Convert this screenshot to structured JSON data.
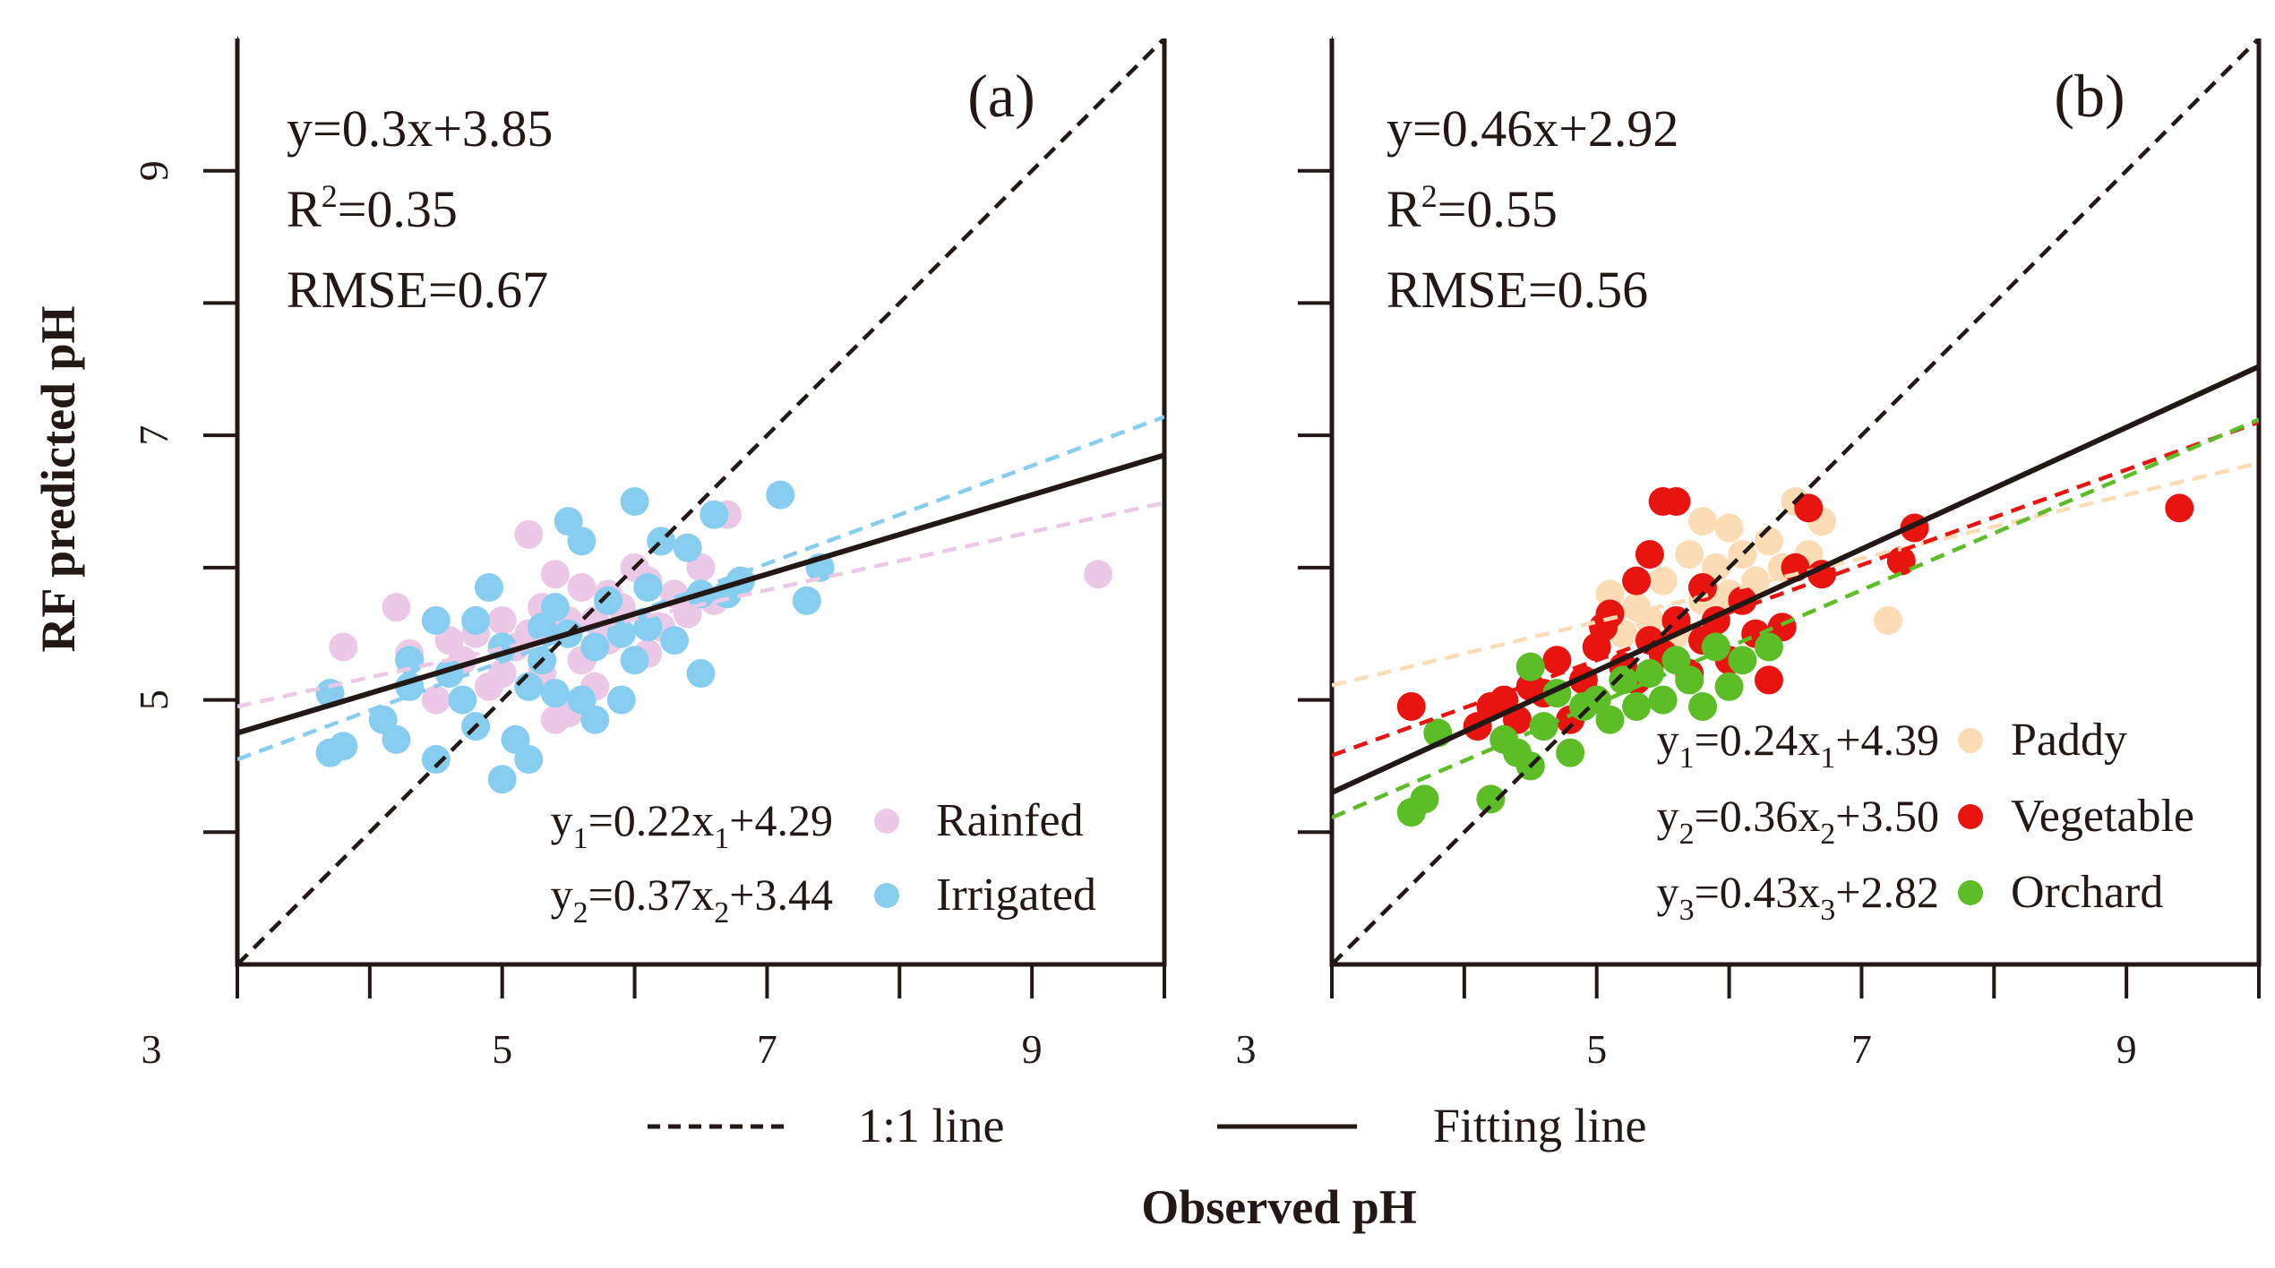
{
  "figure": {
    "ylabel": "RF predicted pH",
    "xlabel": "Observed pH",
    "legend": {
      "dashed_label": "1:1 line",
      "solid_label": "Fitting line"
    }
  },
  "chart_data": [
    {
      "type": "scatter",
      "panel_label": "(a)",
      "xlim": [
        3,
        10
      ],
      "ylim": [
        3,
        10
      ],
      "xticks": [
        3,
        5,
        7,
        9
      ],
      "yticks": [
        5,
        7,
        9
      ],
      "stats": {
        "eq": "y=0.3x+3.85",
        "r2_prefix": "R",
        "r2_sup": "2",
        "r2_value": "=0.35",
        "rmse": "RMSE=0.67"
      },
      "overall_fit": {
        "slope": 0.3,
        "intercept": 3.85
      },
      "one_to_one": true,
      "series": [
        {
          "name": "Rainfed",
          "color": "#ebc9e6",
          "fit": {
            "slope": 0.22,
            "intercept": 4.29
          },
          "eq": {
            "y": "y",
            "sub": "1",
            "mid": "=0.22x",
            "xsub": "1",
            "tail": "+4.29"
          },
          "points": [
            [
              3.8,
              5.4
            ],
            [
              4.2,
              5.7
            ],
            [
              4.3,
              5.35
            ],
            [
              4.5,
              5.0
            ],
            [
              4.6,
              5.2
            ],
            [
              4.7,
              5.3
            ],
            [
              4.8,
              5.5
            ],
            [
              4.9,
              5.1
            ],
            [
              5.0,
              5.6
            ],
            [
              5.1,
              5.4
            ],
            [
              5.2,
              6.25
            ],
            [
              5.2,
              5.5
            ],
            [
              5.3,
              5.2
            ],
            [
              5.4,
              5.95
            ],
            [
              5.4,
              4.85
            ],
            [
              5.5,
              4.9
            ],
            [
              5.5,
              5.6
            ],
            [
              5.6,
              5.85
            ],
            [
              5.6,
              5.3
            ],
            [
              5.7,
              5.6
            ],
            [
              5.8,
              5.45
            ],
            [
              5.8,
              5.8
            ],
            [
              5.9,
              5.7
            ],
            [
              6.0,
              6.0
            ],
            [
              6.1,
              5.35
            ],
            [
              6.2,
              5.55
            ],
            [
              6.3,
              5.8
            ],
            [
              6.4,
              5.65
            ],
            [
              6.5,
              6.0
            ],
            [
              6.6,
              5.75
            ],
            [
              6.7,
              6.4
            ],
            [
              6.8,
              5.9
            ],
            [
              9.5,
              5.95
            ],
            [
              5.0,
              5.2
            ],
            [
              5.3,
              5.7
            ],
            [
              5.7,
              5.1
            ],
            [
              6.1,
              5.9
            ],
            [
              4.6,
              5.45
            ]
          ]
        },
        {
          "name": "Irrigated",
          "color": "#86cdf0",
          "fit": {
            "slope": 0.37,
            "intercept": 3.44
          },
          "eq": {
            "y": "y",
            "sub": "2",
            "mid": "=0.37x",
            "xsub": "2",
            "tail": "+3.44"
          },
          "points": [
            [
              3.7,
              5.05
            ],
            [
              3.7,
              4.6
            ],
            [
              3.8,
              4.65
            ],
            [
              4.1,
              4.85
            ],
            [
              4.2,
              4.7
            ],
            [
              4.3,
              5.3
            ],
            [
              4.3,
              5.1
            ],
            [
              4.5,
              4.55
            ],
            [
              4.5,
              5.6
            ],
            [
              4.6,
              5.2
            ],
            [
              4.7,
              5.0
            ],
            [
              4.8,
              4.8
            ],
            [
              4.8,
              5.6
            ],
            [
              4.9,
              5.85
            ],
            [
              5.0,
              4.4
            ],
            [
              5.0,
              5.4
            ],
            [
              5.1,
              4.7
            ],
            [
              5.2,
              4.55
            ],
            [
              5.2,
              5.1
            ],
            [
              5.3,
              5.3
            ],
            [
              5.4,
              5.7
            ],
            [
              5.4,
              5.05
            ],
            [
              5.5,
              6.35
            ],
            [
              5.5,
              5.5
            ],
            [
              5.6,
              6.2
            ],
            [
              5.6,
              5.0
            ],
            [
              5.7,
              4.85
            ],
            [
              5.7,
              5.4
            ],
            [
              5.8,
              5.75
            ],
            [
              5.9,
              5.5
            ],
            [
              5.9,
              5.0
            ],
            [
              6.0,
              6.5
            ],
            [
              6.0,
              5.3
            ],
            [
              6.1,
              5.55
            ],
            [
              6.2,
              6.2
            ],
            [
              6.3,
              5.45
            ],
            [
              6.4,
              6.15
            ],
            [
              6.5,
              5.8
            ],
            [
              6.5,
              5.2
            ],
            [
              6.6,
              6.4
            ],
            [
              6.7,
              5.8
            ],
            [
              6.8,
              5.9
            ],
            [
              7.1,
              6.55
            ],
            [
              7.3,
              5.75
            ],
            [
              7.4,
              6.0
            ],
            [
              5.3,
              5.55
            ],
            [
              6.1,
              5.85
            ]
          ]
        }
      ]
    },
    {
      "type": "scatter",
      "panel_label": "(b)",
      "xlim": [
        3,
        10
      ],
      "ylim": [
        3,
        10
      ],
      "xticks": [
        3,
        5,
        7,
        9
      ],
      "yticks": [
        5,
        7,
        9
      ],
      "stats": {
        "eq": "y=0.46x+2.92",
        "r2_prefix": "R",
        "r2_sup": "2",
        "r2_value": "=0.55",
        "rmse": "RMSE=0.56"
      },
      "overall_fit": {
        "slope": 0.46,
        "intercept": 2.92
      },
      "one_to_one": true,
      "series": [
        {
          "name": "Paddy",
          "color": "#fbdcb4",
          "fit": {
            "slope": 0.24,
            "intercept": 4.39
          },
          "eq": {
            "y": "y",
            "sub": "1",
            "mid": "=0.24x",
            "xsub": "1",
            "tail": "+4.39"
          },
          "points": [
            [
              5.1,
              5.8
            ],
            [
              5.2,
              5.5
            ],
            [
              5.3,
              5.7
            ],
            [
              5.4,
              5.6
            ],
            [
              5.5,
              5.9
            ],
            [
              5.6,
              5.5
            ],
            [
              5.7,
              6.1
            ],
            [
              5.8,
              6.35
            ],
            [
              5.8,
              5.75
            ],
            [
              5.9,
              6.0
            ],
            [
              6.0,
              5.8
            ],
            [
              6.1,
              6.1
            ],
            [
              6.2,
              5.9
            ],
            [
              6.3,
              6.2
            ],
            [
              6.4,
              6.0
            ],
            [
              6.5,
              6.5
            ],
            [
              6.6,
              6.1
            ],
            [
              6.7,
              6.35
            ],
            [
              7.2,
              5.6
            ],
            [
              5.9,
              5.7
            ],
            [
              6.0,
              6.3
            ]
          ]
        },
        {
          "name": "Vegetable",
          "color": "#e8140f",
          "fit": {
            "slope": 0.36,
            "intercept": 3.5
          },
          "eq": {
            "y": "y",
            "sub": "2",
            "mid": "=0.36x",
            "xsub": "2",
            "tail": "+3.50"
          },
          "points": [
            [
              3.6,
              4.95
            ],
            [
              4.1,
              4.8
            ],
            [
              4.2,
              4.95
            ],
            [
              4.3,
              5.0
            ],
            [
              4.4,
              4.85
            ],
            [
              4.5,
              5.1
            ],
            [
              4.6,
              5.05
            ],
            [
              4.7,
              5.3
            ],
            [
              4.8,
              4.85
            ],
            [
              4.9,
              5.15
            ],
            [
              5.0,
              5.4
            ],
            [
              5.0,
              5.0
            ],
            [
              5.1,
              5.65
            ],
            [
              5.2,
              5.25
            ],
            [
              5.3,
              5.9
            ],
            [
              5.3,
              5.15
            ],
            [
              5.4,
              6.1
            ],
            [
              5.4,
              5.45
            ],
            [
              5.5,
              6.5
            ],
            [
              5.5,
              5.35
            ],
            [
              5.6,
              6.5
            ],
            [
              5.6,
              5.6
            ],
            [
              5.7,
              5.2
            ],
            [
              5.8,
              5.85
            ],
            [
              5.8,
              5.45
            ],
            [
              5.9,
              5.6
            ],
            [
              6.0,
              5.3
            ],
            [
              6.1,
              5.75
            ],
            [
              6.2,
              5.5
            ],
            [
              6.3,
              5.15
            ],
            [
              6.4,
              5.55
            ],
            [
              6.5,
              6.0
            ],
            [
              6.6,
              6.45
            ],
            [
              6.7,
              5.95
            ],
            [
              7.3,
              6.05
            ],
            [
              7.4,
              6.3
            ],
            [
              9.4,
              6.45
            ],
            [
              5.05,
              5.55
            ]
          ]
        },
        {
          "name": "Orchard",
          "color": "#5cbd27",
          "fit": {
            "slope": 0.43,
            "intercept": 2.82
          },
          "eq": {
            "y": "y",
            "sub": "3",
            "mid": "=0.43x",
            "xsub": "3",
            "tail": "+2.82"
          },
          "points": [
            [
              3.6,
              4.15
            ],
            [
              3.7,
              4.25
            ],
            [
              3.8,
              4.75
            ],
            [
              4.2,
              4.25
            ],
            [
              4.3,
              4.7
            ],
            [
              4.4,
              4.6
            ],
            [
              4.5,
              4.5
            ],
            [
              4.6,
              4.8
            ],
            [
              4.7,
              5.05
            ],
            [
              4.8,
              4.6
            ],
            [
              4.9,
              4.95
            ],
            [
              5.0,
              5.0
            ],
            [
              5.1,
              4.85
            ],
            [
              5.2,
              5.15
            ],
            [
              5.3,
              4.95
            ],
            [
              5.4,
              5.2
            ],
            [
              5.5,
              5.0
            ],
            [
              5.6,
              5.3
            ],
            [
              5.7,
              5.15
            ],
            [
              5.8,
              4.95
            ],
            [
              5.9,
              5.4
            ],
            [
              6.0,
              5.1
            ],
            [
              6.1,
              5.3
            ],
            [
              6.3,
              5.4
            ],
            [
              4.5,
              5.25
            ]
          ]
        }
      ]
    }
  ]
}
